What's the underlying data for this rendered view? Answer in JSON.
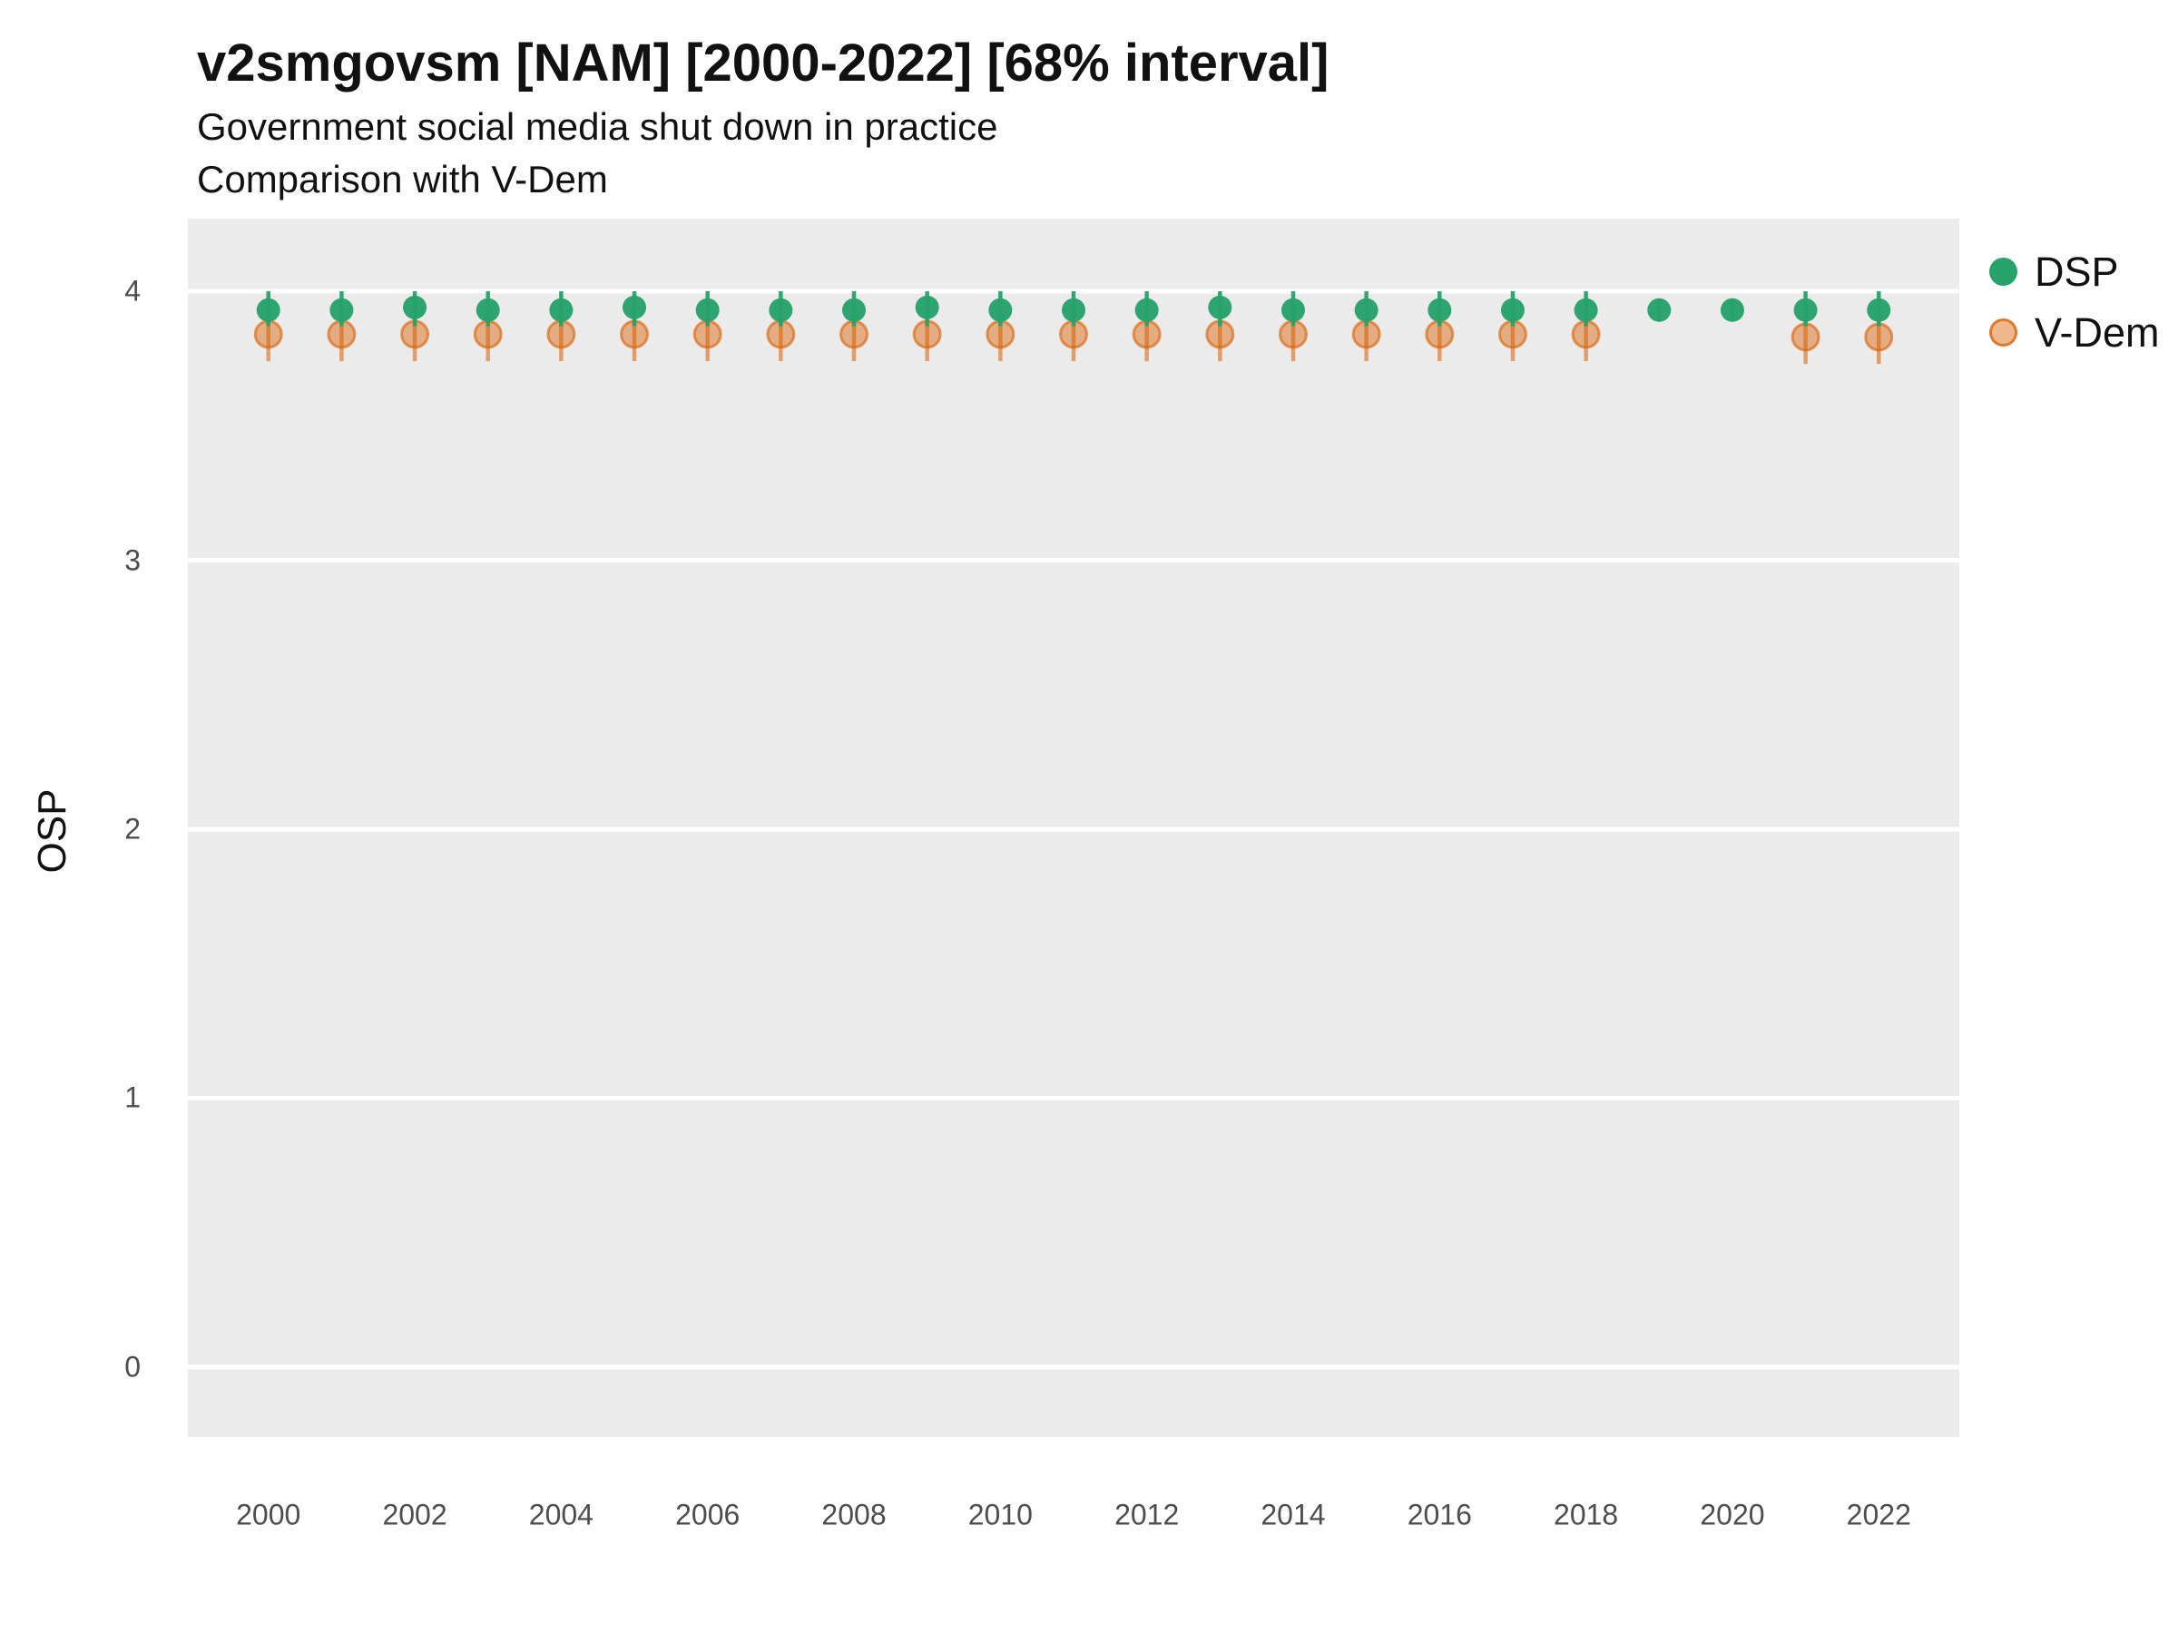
{
  "header": {
    "title": "v2smgovsm [NAM] [2000-2022] [68% interval]",
    "subtitle_line1": "Government social media shut down in practice",
    "subtitle_line2": "Comparison with V-Dem"
  },
  "axes": {
    "y_label": "OSP"
  },
  "legend": {
    "items": [
      {
        "label": "DSP"
      },
      {
        "label": "V-Dem"
      }
    ]
  },
  "chart_data": {
    "type": "scatter",
    "title": "v2smgovsm [NAM] [2000-2022] [68% interval]",
    "subtitle": [
      "Government social media shut down in practice",
      "Comparison with V-Dem"
    ],
    "xlabel": "",
    "ylabel": "OSP",
    "interval": "68%",
    "country": "NAM",
    "variable": "v2smgovsm",
    "x": [
      2000,
      2001,
      2002,
      2003,
      2004,
      2005,
      2006,
      2007,
      2008,
      2009,
      2010,
      2011,
      2012,
      2013,
      2014,
      2015,
      2016,
      2017,
      2018,
      2019,
      2020,
      2021,
      2022
    ],
    "series": [
      {
        "name": "DSP",
        "color": "#27A26B",
        "marker_radius": 13,
        "values": [
          3.93,
          3.93,
          3.94,
          3.93,
          3.93,
          3.94,
          3.93,
          3.93,
          3.93,
          3.94,
          3.93,
          3.93,
          3.93,
          3.94,
          3.93,
          3.93,
          3.93,
          3.93,
          3.93,
          3.93,
          3.93,
          3.93,
          3.93
        ],
        "lower": [
          3.87,
          3.87,
          3.87,
          3.87,
          3.87,
          3.87,
          3.87,
          3.87,
          3.87,
          3.87,
          3.87,
          3.87,
          3.87,
          3.87,
          3.87,
          3.87,
          3.87,
          3.87,
          3.87,
          3.89,
          3.89,
          3.87,
          3.87
        ],
        "upper": [
          4.0,
          4.0,
          4.0,
          4.0,
          4.0,
          4.0,
          4.0,
          4.0,
          4.0,
          4.0,
          4.0,
          4.0,
          4.0,
          4.0,
          4.0,
          4.0,
          4.0,
          4.0,
          4.0,
          3.97,
          3.97,
          4.0,
          4.0
        ]
      },
      {
        "name": "V-Dem",
        "fill": "#D95F02",
        "fill_opacity": 0.45,
        "stroke": "#D95F02",
        "stroke_opacity": 0.6,
        "marker_radius": 14.5,
        "values": [
          3.84,
          3.84,
          3.84,
          3.84,
          3.84,
          3.84,
          3.84,
          3.84,
          3.84,
          3.84,
          3.84,
          3.84,
          3.84,
          3.84,
          3.84,
          3.84,
          3.84,
          3.84,
          3.84,
          null,
          null,
          3.83,
          3.83
        ],
        "lower": [
          3.74,
          3.74,
          3.74,
          3.74,
          3.74,
          3.74,
          3.74,
          3.74,
          3.74,
          3.74,
          3.74,
          3.74,
          3.74,
          3.74,
          3.74,
          3.74,
          3.74,
          3.74,
          3.74,
          null,
          null,
          3.73,
          3.73
        ],
        "upper": [
          3.9,
          3.9,
          3.9,
          3.9,
          3.9,
          3.9,
          3.9,
          3.9,
          3.9,
          3.9,
          3.9,
          3.9,
          3.9,
          3.9,
          3.9,
          3.9,
          3.9,
          3.9,
          3.9,
          null,
          null,
          3.9,
          3.9
        ]
      }
    ],
    "xticks": [
      2000,
      2002,
      2004,
      2006,
      2008,
      2010,
      2012,
      2014,
      2016,
      2018,
      2020,
      2022
    ],
    "yticks": [
      0,
      1,
      2,
      3,
      4
    ],
    "x_domain": [
      1998.9,
      2023.1
    ],
    "y_domain": [
      -0.26,
      4.27
    ],
    "grid": "major-horizontal-white",
    "panel_background": "#EBEBEB",
    "legend_position": "right"
  }
}
